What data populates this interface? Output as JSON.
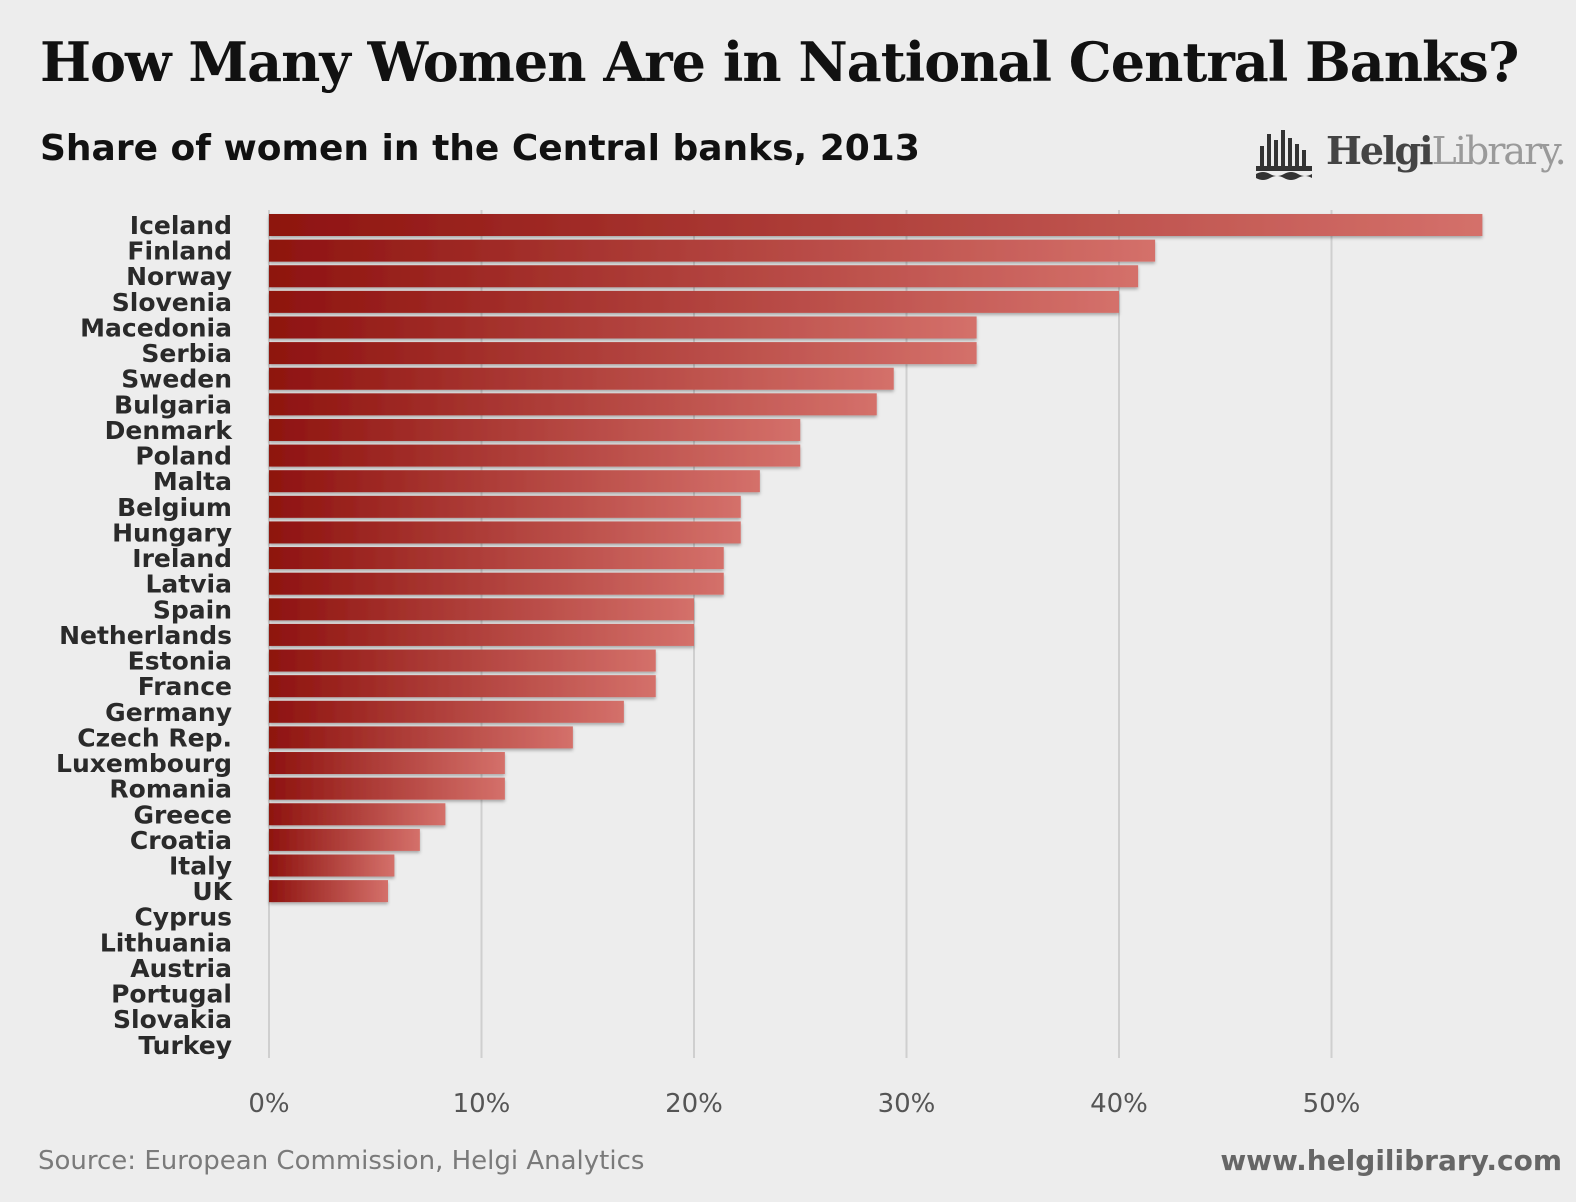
{
  "chart_data": {
    "type": "bar",
    "orientation": "horizontal",
    "title": "How Many Women Are in National Central Banks?",
    "subtitle": "Share of women in the Central banks, 2013",
    "categories": [
      "Iceland",
      "Finland",
      "Norway",
      "Slovenia",
      "Macedonia",
      "Serbia",
      "Sweden",
      "Bulgaria",
      "Denmark",
      "Poland",
      "Malta",
      "Belgium",
      "Hungary",
      "Ireland",
      "Latvia",
      "Spain",
      "Netherlands",
      "Estonia",
      "France",
      "Germany",
      "Czech Rep.",
      "Luxembourg",
      "Romania",
      "Greece",
      "Croatia",
      "Italy",
      "UK",
      "Cyprus",
      "Lithuania",
      "Austria",
      "Portugal",
      "Slovakia",
      "Turkey"
    ],
    "values": [
      57.1,
      41.7,
      40.9,
      40.0,
      33.3,
      33.3,
      29.4,
      28.6,
      25.0,
      25.0,
      23.1,
      22.2,
      22.2,
      21.4,
      21.4,
      20.0,
      20.0,
      18.2,
      18.2,
      16.7,
      14.3,
      11.1,
      11.1,
      8.3,
      7.1,
      5.9,
      5.6,
      0,
      0,
      0,
      0,
      0,
      0
    ],
    "xticks": [
      "0%",
      "10%",
      "20%",
      "30%",
      "40%",
      "50%"
    ],
    "xtick_values": [
      0,
      10,
      20,
      30,
      40,
      50
    ],
    "xlim": [
      0,
      60
    ],
    "grid": true,
    "colors": {
      "bar_dark": "#8e130f",
      "bar_light": "#d4706a",
      "grid": "#cfcfcf"
    }
  },
  "brand": {
    "logo_dark": "Helgi",
    "logo_light": "Library."
  },
  "footer": {
    "source": "Source: European Commission, Helgi Analytics",
    "website": "www.helgilibrary.com"
  }
}
